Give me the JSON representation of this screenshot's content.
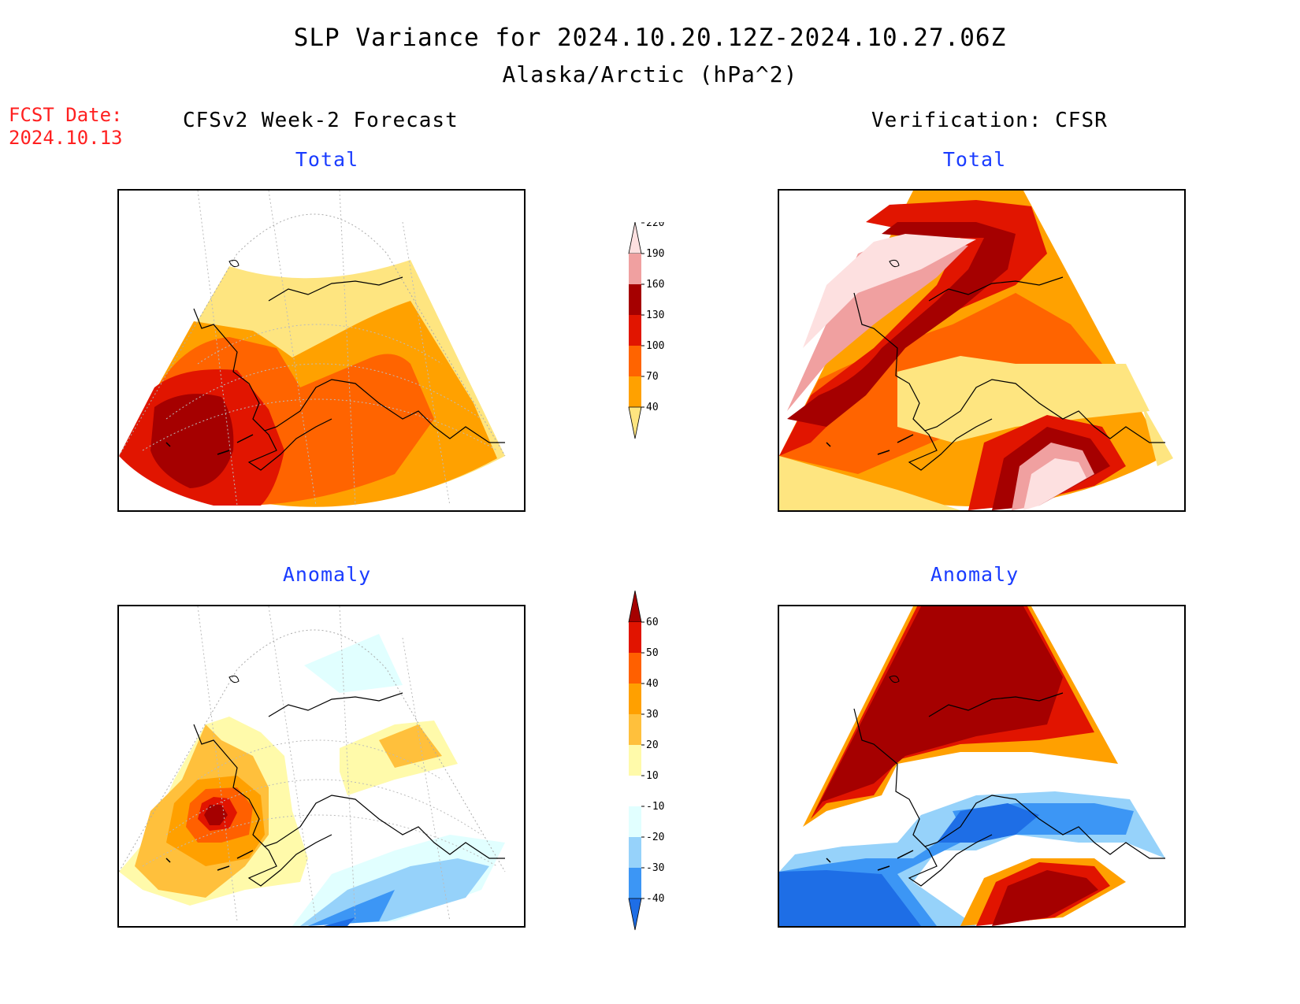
{
  "title": "SLP Variance for 2024.10.20.12Z-2024.10.27.06Z",
  "subtitle": "Alaska/Arctic (hPa^2)",
  "fcst_label": "FCST Date:",
  "fcst_date": "2024.10.13",
  "left_column_title": "CFSv2 Week-2 Forecast",
  "right_column_title": "Verification: CFSR",
  "panel_titles": {
    "forecast_total": "Total",
    "verification_total": "Total",
    "forecast_anomaly": "Anomaly",
    "verification_anomaly": "Anomaly"
  },
  "total_colorbar": {
    "levels": [
      "40",
      "70",
      "100",
      "130",
      "160",
      "190",
      "220"
    ],
    "colors": [
      "#fee580",
      "#ffa100",
      "#ff6400",
      "#e11500",
      "#a50000",
      "#f0a0a0",
      "#fde0e0"
    ]
  },
  "anomaly_colorbar": {
    "levels": [
      "-40",
      "-30",
      "-20",
      "-10",
      "10",
      "20",
      "30",
      "40",
      "50",
      "60"
    ],
    "colors": [
      "#1e6ee6",
      "#3c96f5",
      "#96d2fa",
      "#e1ffff",
      "#ffffff",
      "#fffaaa",
      "#ffc03c",
      "#ffa000",
      "#ff6000",
      "#e11400",
      "#a50000"
    ]
  }
}
